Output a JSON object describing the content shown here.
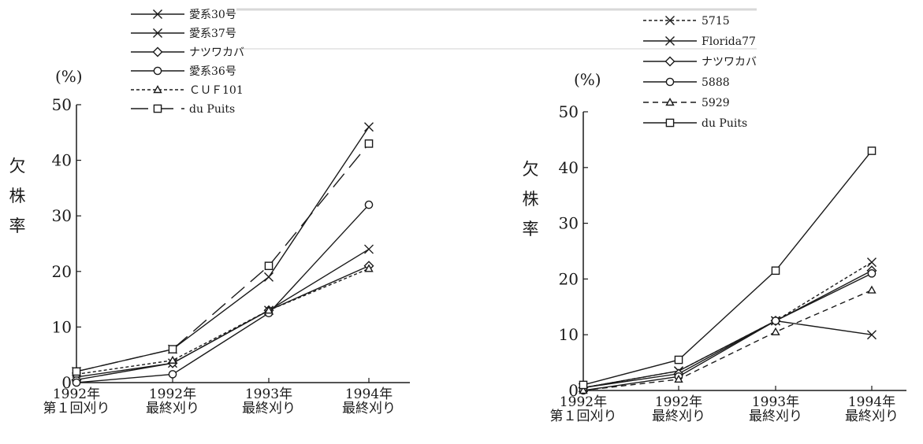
{
  "chart_data": [
    {
      "type": "line",
      "ylabel": "欠株率",
      "unit": "(%)",
      "ylim": [
        0,
        50
      ],
      "yticks": [
        "0",
        "10",
        "20",
        "30",
        "40",
        "50"
      ],
      "categories": [
        "1992年|第１回刈り",
        "1992年|最終刈り",
        "1993年|最終刈り",
        "1994年|最終刈り"
      ],
      "legend_position": "top",
      "series": [
        {
          "name": "愛系30号",
          "values": [
            2,
            6,
            19,
            46
          ],
          "marker": "x",
          "dash": "solid"
        },
        {
          "name": "愛系37号",
          "values": [
            1,
            3.5,
            13,
            24
          ],
          "marker": "x",
          "dash": "solid"
        },
        {
          "name": "ナツワカバ",
          "values": [
            0.5,
            3.5,
            13,
            21
          ],
          "marker": "diamond",
          "dash": "solid"
        },
        {
          "name": "愛系36号",
          "values": [
            0,
            1.5,
            12.5,
            32
          ],
          "marker": "circle",
          "dash": "solid"
        },
        {
          "name": "ＣＵＦ101",
          "values": [
            1.5,
            4,
            13,
            20.5
          ],
          "marker": "triangle",
          "dash": "dotted"
        },
        {
          "name": "du Puits",
          "values": [
            2,
            6,
            21,
            43
          ],
          "marker": "square",
          "dash": "longdash"
        }
      ]
    },
    {
      "type": "line",
      "ylabel": "欠株率",
      "unit": "(%)",
      "ylim": [
        0,
        50
      ],
      "yticks": [
        "0",
        "10",
        "20",
        "30",
        "40",
        "50"
      ],
      "categories": [
        "1992年|第１回刈り",
        "1992年|最終刈り",
        "1993年|最終刈り",
        "1994年|最終刈り"
      ],
      "legend_position": "top",
      "series": [
        {
          "name": "5715",
          "values": [
            0.5,
            3.5,
            12.5,
            23
          ],
          "marker": "x",
          "dash": "dotted"
        },
        {
          "name": "Florida77",
          "values": [
            0.5,
            3.5,
            12.5,
            10
          ],
          "marker": "x",
          "dash": "solid"
        },
        {
          "name": "ナツワカバ",
          "values": [
            0.5,
            3,
            12.5,
            21.5
          ],
          "marker": "diamond",
          "dash": "solid"
        },
        {
          "name": "5888",
          "values": [
            0,
            2.5,
            12.5,
            21
          ],
          "marker": "circle",
          "dash": "solid"
        },
        {
          "name": "5929",
          "values": [
            0,
            2,
            10.5,
            18
          ],
          "marker": "triangle",
          "dash": "dashed"
        },
        {
          "name": "du Puits",
          "values": [
            1,
            5.5,
            21.5,
            43
          ],
          "marker": "square",
          "dash": "solid"
        }
      ]
    }
  ]
}
